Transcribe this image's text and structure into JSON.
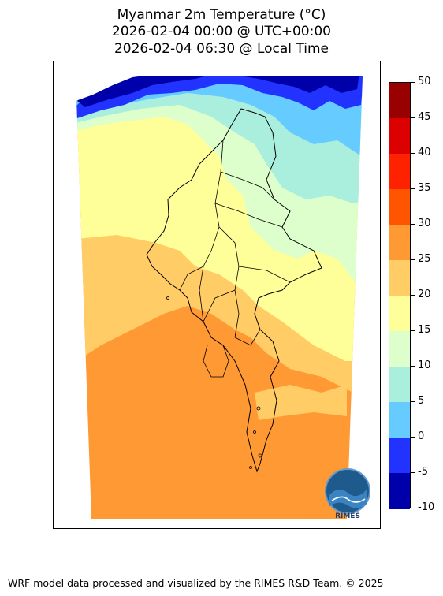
{
  "title": {
    "line1": "Myanmar 2m Temperature (°C)",
    "line2": "2026-02-04 00:00 @ UTC+00:00",
    "line3": "2026-02-04 06:30 @ Local Time"
  },
  "colorbar": {
    "ticks": [
      "50",
      "45",
      "40",
      "35",
      "30",
      "25",
      "20",
      "15",
      "10",
      "5",
      "0",
      "-5",
      "-10"
    ],
    "bands": [
      {
        "range": "45 to 50",
        "color": "#990000"
      },
      {
        "range": "40 to 45",
        "color": "#dd0000"
      },
      {
        "range": "35 to 40",
        "color": "#ff2200"
      },
      {
        "range": "30 to 35",
        "color": "#ff5500"
      },
      {
        "range": "25 to 30",
        "color": "#ff9933"
      },
      {
        "range": "20 to 25",
        "color": "#ffcc66"
      },
      {
        "range": "15 to 20",
        "color": "#ffff99"
      },
      {
        "range": "10 to 15",
        "color": "#ddffcc"
      },
      {
        "range": "5 to 10",
        "color": "#aaeedd"
      },
      {
        "range": "0 to 5",
        "color": "#66ccff"
      },
      {
        "range": "-5 to 0",
        "color": "#2233ff"
      },
      {
        "range": "-10 to -5",
        "color": "#0000aa"
      }
    ]
  },
  "logo": {
    "text": "RIMES"
  },
  "footer": {
    "text": "WRF model data processed and visualized by the RIMES R&D Team. © 2025"
  }
}
